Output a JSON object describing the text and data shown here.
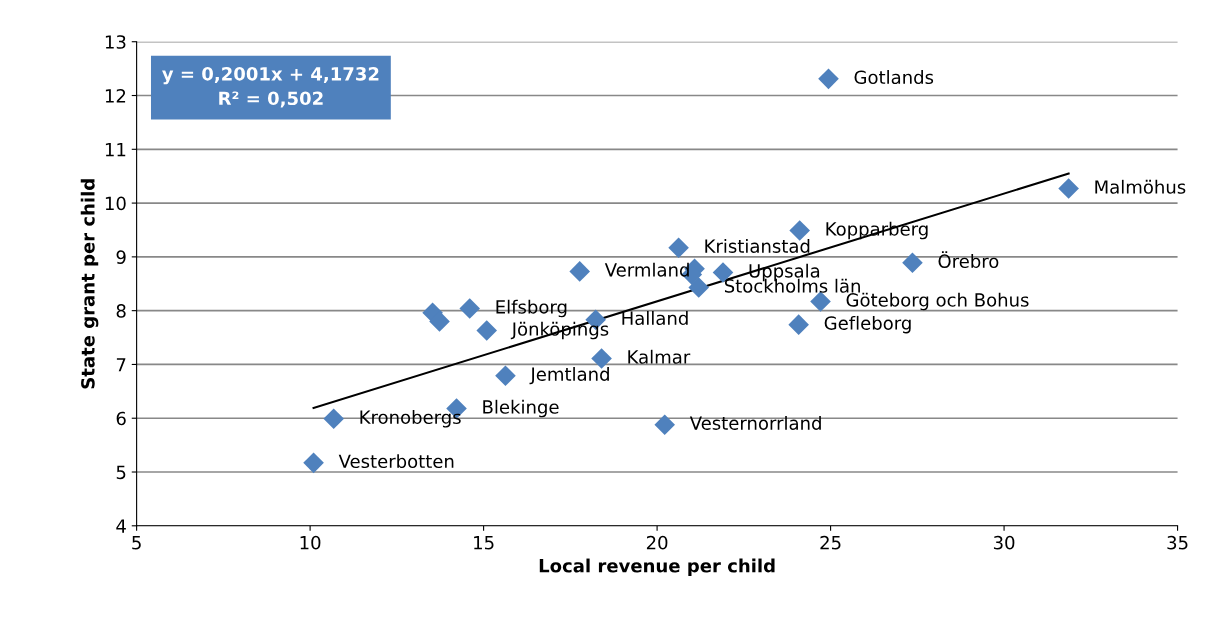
{
  "chart_data": {
    "type": "scatter",
    "xlabel": "Local revenue per child",
    "ylabel": "State grant per child",
    "xlim": [
      5,
      35
    ],
    "xticks": [
      5,
      10,
      15,
      20,
      25,
      30,
      35
    ],
    "ylim": [
      4,
      13
    ],
    "yticks": [
      4,
      5,
      6,
      7,
      8,
      9,
      10,
      11,
      12,
      13
    ],
    "grid": "y",
    "legend": false,
    "series": [
      {
        "color": "#4f81bd",
        "marker": "diamond",
        "x": [
          24.94,
          31.86,
          24.11,
          20.62,
          27.36,
          21.08,
          21.0,
          21.9,
          21.2,
          24.71,
          24.08,
          17.77,
          14.6,
          13.53,
          13.73,
          15.09,
          18.23,
          18.4,
          15.63,
          14.22,
          10.68,
          10.1,
          20.22
        ],
        "values": [
          12.31,
          10.27,
          9.49,
          9.17,
          8.89,
          8.78,
          8.67,
          8.71,
          8.43,
          8.17,
          7.74,
          8.73,
          8.04,
          7.96,
          7.8,
          7.63,
          7.83,
          7.11,
          6.79,
          6.18,
          5.99,
          5.17,
          5.88
        ]
      },
      {
        "type": "line",
        "marker": "none",
        "color": "#000000",
        "x": [
          10.1,
          31.86
        ],
        "values": [
          6.19,
          10.55
        ]
      }
    ],
    "annotations": [
      {
        "text": "Gotlands",
        "x": 24.94,
        "y": 12.31
      },
      {
        "text": "Malmöhus",
        "x": 31.86,
        "y": 10.27
      },
      {
        "text": "Kopparberg",
        "x": 24.11,
        "y": 9.49
      },
      {
        "text": "Kristianstad",
        "x": 20.62,
        "y": 9.17
      },
      {
        "text": "Örebro",
        "x": 27.36,
        "y": 8.89
      },
      {
        "text": "Uppsala",
        "x": 21.9,
        "y": 8.71
      },
      {
        "text": "Stockholms län",
        "x": 21.2,
        "y": 8.43
      },
      {
        "text": "Göteborg och Bohus",
        "x": 24.71,
        "y": 8.17
      },
      {
        "text": "Gefleborg",
        "x": 24.08,
        "y": 7.74
      },
      {
        "text": "Vermland",
        "x": 17.77,
        "y": 8.73
      },
      {
        "text": "Elfsborg",
        "x": 14.6,
        "y": 8.04
      },
      {
        "text": "Jönköpings",
        "x": 15.09,
        "y": 7.63
      },
      {
        "text": "Halland",
        "x": 18.23,
        "y": 7.83
      },
      {
        "text": "Kalmar",
        "x": 18.4,
        "y": 7.11
      },
      {
        "text": "Jemtland",
        "x": 15.63,
        "y": 6.79
      },
      {
        "text": "Blekinge",
        "x": 14.22,
        "y": 6.18
      },
      {
        "text": "Kronobergs",
        "x": 10.68,
        "y": 5.99
      },
      {
        "text": "Vesterbotten",
        "x": 10.1,
        "y": 5.17
      },
      {
        "text": "Vesternorrland",
        "x": 20.22,
        "y": 5.88
      },
      "y = 0,2001x + 4,1732\nR² = 0,502"
    ]
  }
}
